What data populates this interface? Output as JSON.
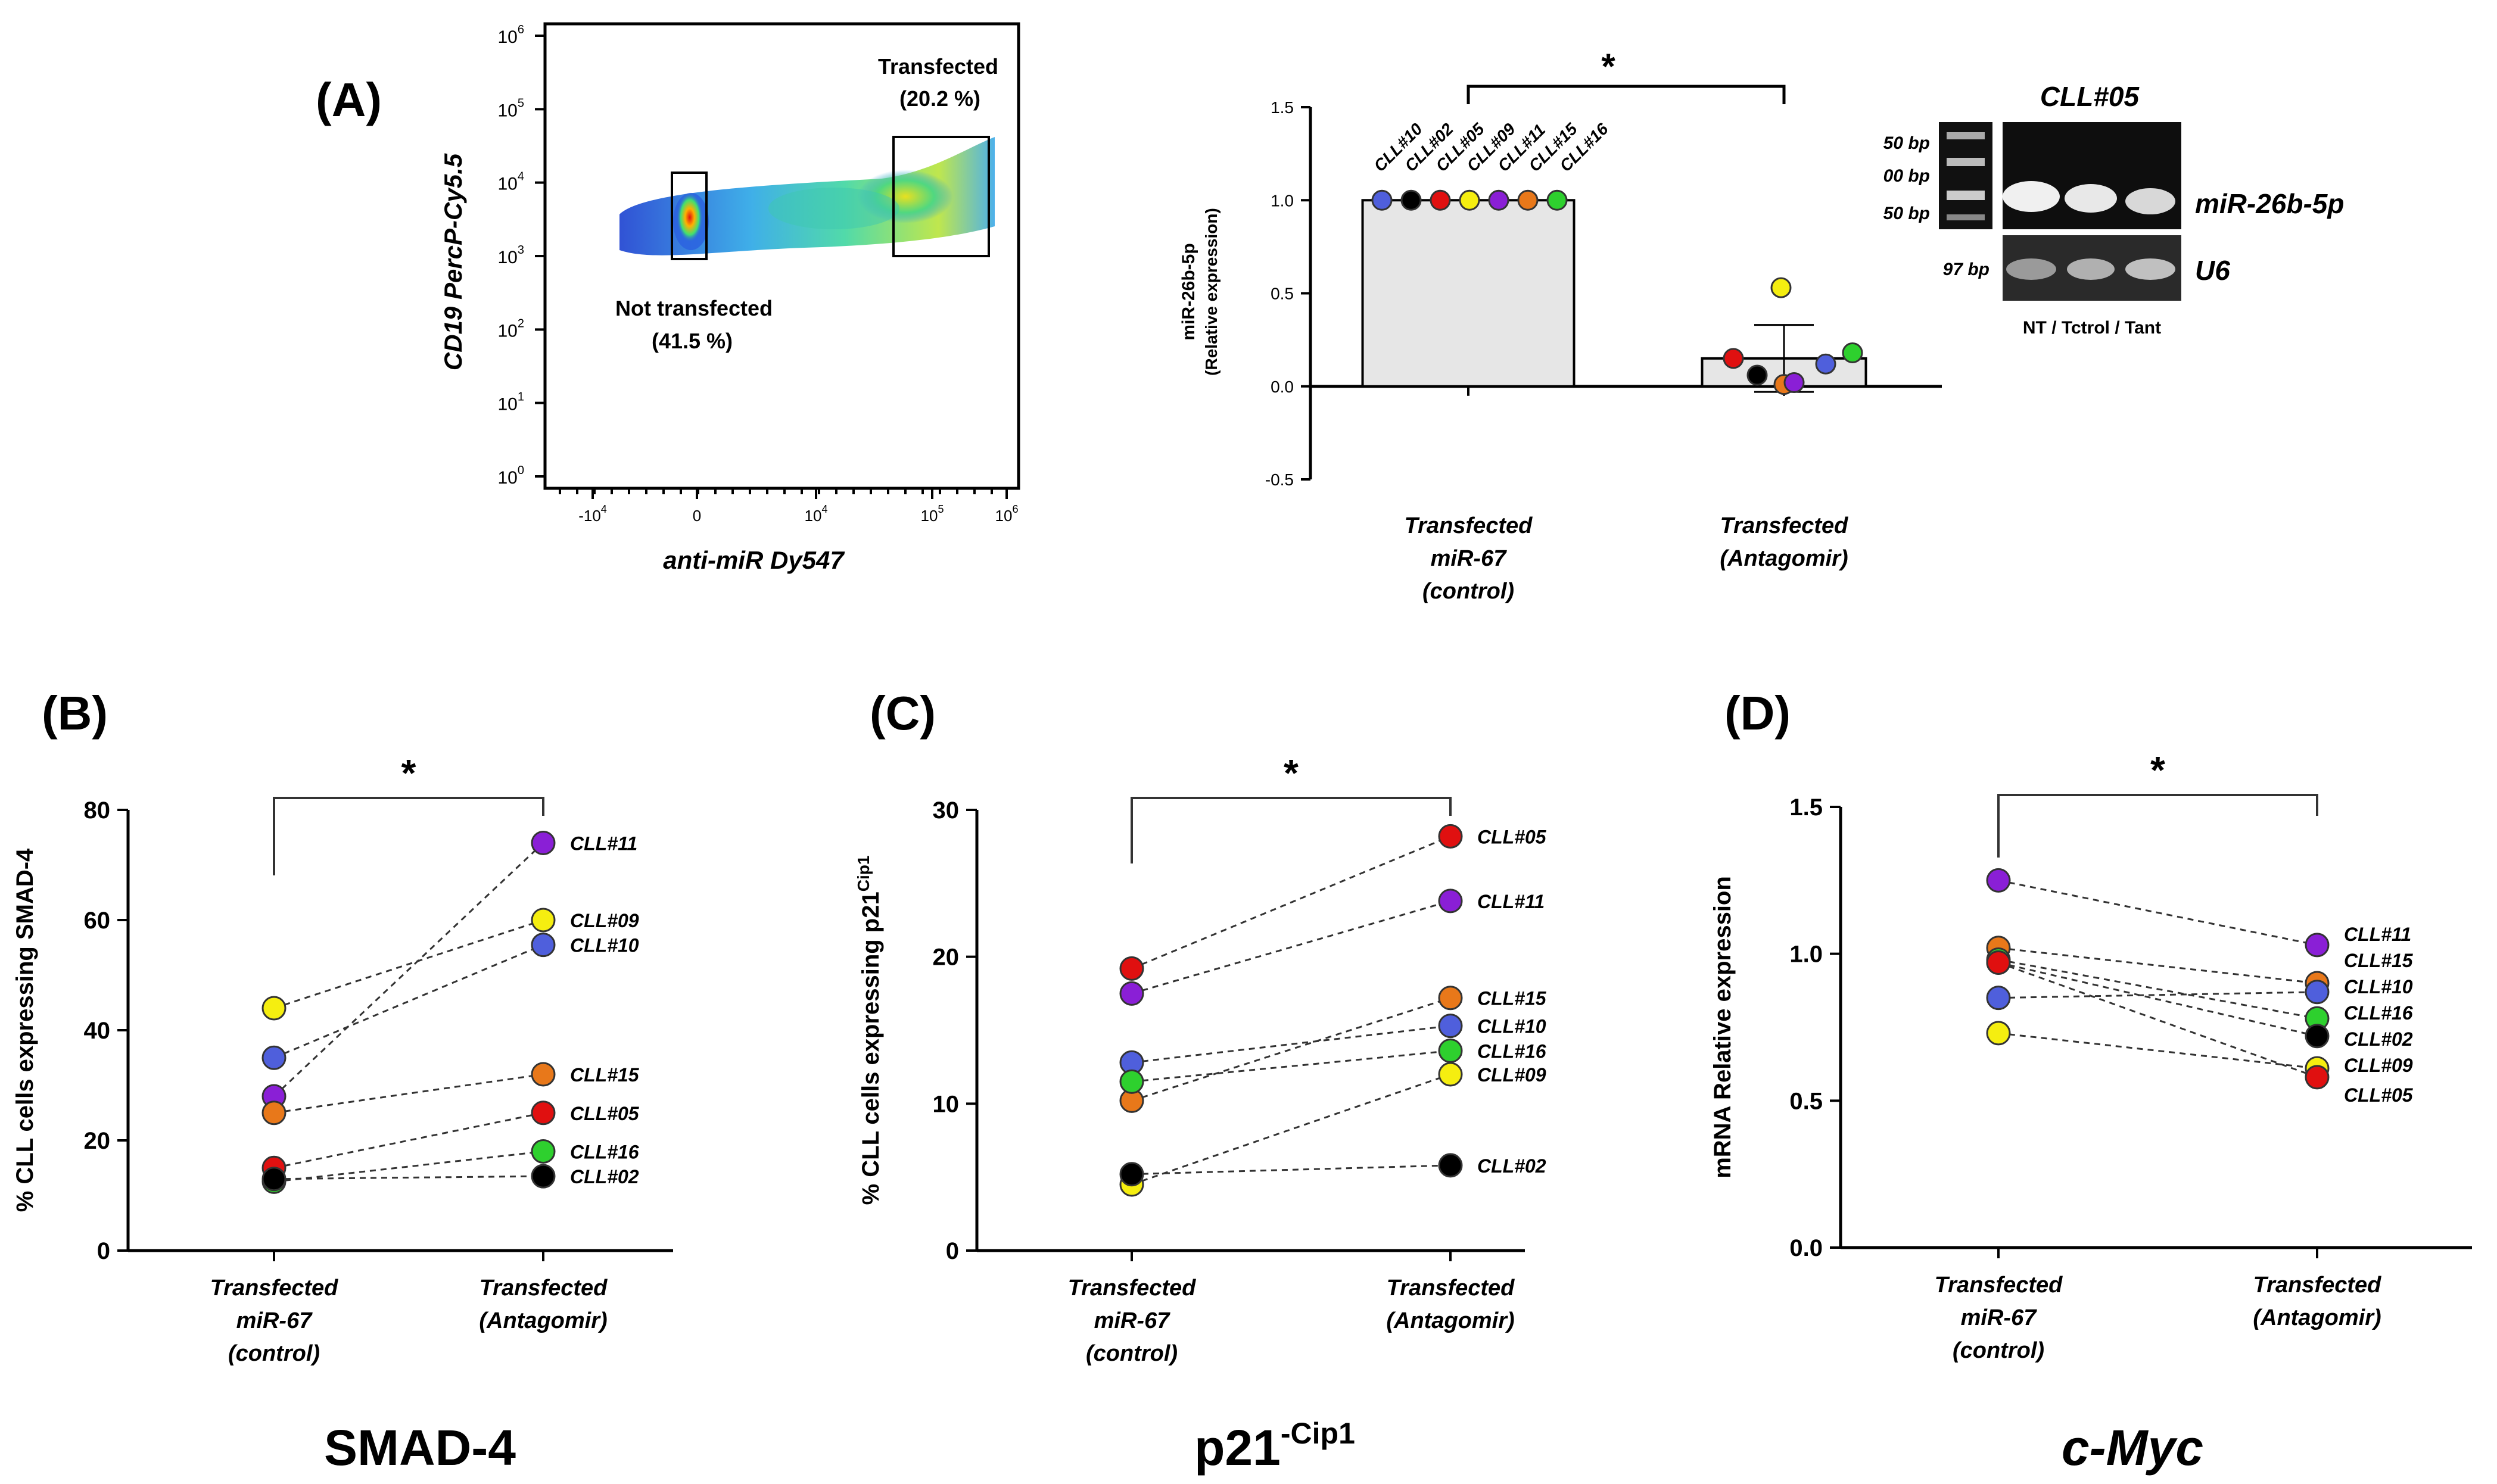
{
  "panel_letters": [
    "(A)",
    "(B)",
    "(C)",
    "(D)"
  ],
  "colors": {
    "CLL#10": "#4f5fdc",
    "CLL#02": "#000000",
    "CLL#05": "#e01010",
    "CLL#09": "#f5ee10",
    "CLL#11": "#8a1fd6",
    "CLL#15": "#e8781a",
    "CLL#16": "#2ed02e",
    "bar_fill": "#e6e6e6"
  },
  "flow": {
    "ylabel": "CD19 PercP-Cy5.5",
    "xlabel": "anti-miR Dy547",
    "ytick_exp": [
      "0",
      "1",
      "2",
      "3",
      "4",
      "5",
      "6"
    ],
    "xticks": [
      {
        "base": "-10",
        "exp": "4"
      },
      {
        "base": "0",
        "exp": ""
      },
      {
        "base": "10",
        "exp": "4"
      },
      {
        "base": "10",
        "exp": "5"
      },
      {
        "base": "10",
        "exp": "6"
      }
    ],
    "gate_transfected": {
      "label": "Transfected",
      "value": "(20.2 %)"
    },
    "gate_not_transfected": {
      "label": "Not transfected",
      "value": "(41.5 %)"
    }
  },
  "gel": {
    "title": "CLL#05",
    "ladder_labels": [
      "50 bp",
      "00 bp",
      "50 bp"
    ],
    "u6_size": "97 bp",
    "band_top": "miR-26b-5p",
    "band_bottom": "U6",
    "lanes_caption": "NT / Tctrol / Tant"
  },
  "chart_data": [
    {
      "panel": "(A)",
      "type": "bar",
      "ylabel": "miR-26b-5p",
      "ylabel2": "(Relative expression)",
      "ylim": [
        -0.5,
        1.5
      ],
      "yticks": [
        "1.5",
        "1.0",
        "0.5",
        "0.0",
        "-0.5"
      ],
      "categories": [
        [
          "Transfected",
          "miR-67",
          "(control)"
        ],
        [
          "Transfected",
          "(Antagomir)"
        ]
      ],
      "values": [
        1.0,
        0.15
      ],
      "error_upper": [
        0.0,
        0.33
      ],
      "error_lower": [
        0.0,
        -0.03
      ],
      "significance": "*",
      "points_control": [
        {
          "id": "CLL#10",
          "y": 1.0
        },
        {
          "id": "CLL#02",
          "y": 1.0
        },
        {
          "id": "CLL#05",
          "y": 1.0
        },
        {
          "id": "CLL#09",
          "y": 1.0
        },
        {
          "id": "CLL#11",
          "y": 1.0
        },
        {
          "id": "CLL#15",
          "y": 1.0
        },
        {
          "id": "CLL#16",
          "y": 1.0
        }
      ],
      "point_labels": [
        "CLL#10",
        "CLL#02",
        "CLL#05",
        "CLL#09",
        "CLL#11",
        "CLL#15",
        "CLL#16"
      ],
      "points_antagomir": [
        {
          "id": "CLL#05",
          "y": 0.15
        },
        {
          "id": "CLL#02",
          "y": 0.06
        },
        {
          "id": "CLL#15",
          "y": 0.01
        },
        {
          "id": "CLL#11",
          "y": 0.02
        },
        {
          "id": "CLL#09",
          "y": 0.53
        },
        {
          "id": "CLL#10",
          "y": 0.12
        },
        {
          "id": "CLL#16",
          "y": 0.18
        }
      ]
    },
    {
      "panel": "(B)",
      "type": "line",
      "title": "SMAD-4",
      "ylabel": "% CLL cells expressing SMAD-4",
      "ylim": [
        0,
        80
      ],
      "yticks": [
        "80",
        "60",
        "40",
        "20",
        "0"
      ],
      "categories": [
        [
          "Transfected",
          "miR-67",
          "(control)"
        ],
        [
          "Transfected",
          "(Antagomir)"
        ]
      ],
      "significance": "*",
      "series": [
        {
          "name": "CLL#11",
          "values": [
            28,
            74
          ]
        },
        {
          "name": "CLL#09",
          "values": [
            44,
            60
          ]
        },
        {
          "name": "CLL#10",
          "values": [
            35,
            55.5
          ]
        },
        {
          "name": "CLL#15",
          "values": [
            25,
            32
          ]
        },
        {
          "name": "CLL#05",
          "values": [
            15,
            25
          ]
        },
        {
          "name": "CLL#16",
          "values": [
            12.5,
            18
          ]
        },
        {
          "name": "CLL#02",
          "values": [
            13,
            13.5
          ]
        }
      ]
    },
    {
      "panel": "(C)",
      "type": "line",
      "title": "p21",
      "title_sup": "-Cip1",
      "ylabel": "% CLL cells expressing p21",
      "ylabel_sup": "Cip1",
      "ylim": [
        0,
        30
      ],
      "yticks": [
        "30",
        "20",
        "10",
        "0"
      ],
      "categories": [
        [
          "Transfected",
          "miR-67",
          "(control)"
        ],
        [
          "Transfected",
          "(Antagomir)"
        ]
      ],
      "significance": "*",
      "series": [
        {
          "name": "CLL#05",
          "values": [
            19.2,
            28.2
          ]
        },
        {
          "name": "CLL#11",
          "values": [
            17.5,
            23.8
          ]
        },
        {
          "name": "CLL#15",
          "values": [
            10.2,
            17.2
          ]
        },
        {
          "name": "CLL#10",
          "values": [
            12.8,
            15.3
          ]
        },
        {
          "name": "CLL#16",
          "values": [
            11.5,
            13.6
          ]
        },
        {
          "name": "CLL#09",
          "values": [
            4.5,
            12
          ]
        },
        {
          "name": "CLL#02",
          "values": [
            5.2,
            5.8
          ]
        }
      ]
    },
    {
      "panel": "(D)",
      "type": "line",
      "title": "c-Myc",
      "ylabel": "mRNA Relative expression",
      "ylim": [
        0,
        1.5
      ],
      "yticks": [
        "1.5",
        "1.0",
        "0.5",
        "0.0"
      ],
      "categories": [
        [
          "Transfected",
          "miR-67",
          "(control)"
        ],
        [
          "Transfected",
          "(Antagomir)"
        ]
      ],
      "significance": "*",
      "series": [
        {
          "name": "CLL#11",
          "values": [
            1.25,
            1.03
          ]
        },
        {
          "name": "CLL#15",
          "values": [
            1.02,
            0.9
          ]
        },
        {
          "name": "CLL#10",
          "values": [
            0.85,
            0.87
          ]
        },
        {
          "name": "CLL#16",
          "values": [
            0.98,
            0.78
          ]
        },
        {
          "name": "CLL#02",
          "values": [
            0.97,
            0.72
          ]
        },
        {
          "name": "CLL#09",
          "values": [
            0.73,
            0.61
          ]
        },
        {
          "name": "CLL#05",
          "values": [
            0.97,
            0.58
          ]
        }
      ],
      "right_labels_order": [
        "CLL#11",
        "CLL#15",
        "CLL#10",
        "CLL#16",
        "CLL#02",
        "CLL#09",
        "CLL#05"
      ]
    }
  ]
}
